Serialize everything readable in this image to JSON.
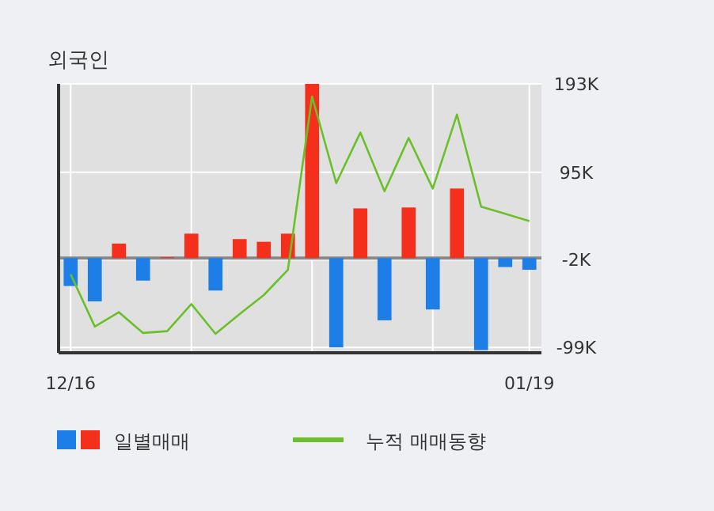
{
  "chart_data": {
    "type": "bar",
    "title": "외국인",
    "categories": [
      "12/16",
      null,
      null,
      null,
      null,
      null,
      null,
      null,
      null,
      null,
      null,
      null,
      null,
      null,
      null,
      null,
      null,
      null,
      null,
      "01/19"
    ],
    "ylim": [
      -105,
      193
    ],
    "yticks": [
      {
        "value": 193,
        "label": "193K"
      },
      {
        "value": 95,
        "label": "95K"
      },
      {
        "value": -2,
        "label": "-2K"
      },
      {
        "value": -99,
        "label": "-99K"
      }
    ],
    "grid": true,
    "legend": "bottom",
    "series": [
      {
        "name": "일별매매",
        "values": [
          -31,
          -48,
          16,
          -25,
          1,
          27,
          -36,
          21,
          18,
          27,
          193,
          -99,
          55,
          -69,
          56,
          -57,
          77,
          -102,
          -10,
          -13
        ],
        "colors": [
          "#1e7ee8",
          "#1e7ee8",
          "#f4301c",
          "#1e7ee8",
          "#f4301c",
          "#f4301c",
          "#1e7ee8",
          "#f4301c",
          "#f4301c",
          "#f4301c",
          "#f4301c",
          "#1e7ee8",
          "#f4301c",
          "#1e7ee8",
          "#f4301c",
          "#1e7ee8",
          "#f4301c",
          "#1e7ee8",
          "#1e7ee8",
          "#1e7ee8"
        ]
      },
      {
        "name": "누적 매매동향",
        "type": "line",
        "color": "#6ac02a",
        "values": [
          -18,
          -76,
          -60,
          -83,
          -81,
          -51,
          -84,
          -62,
          -41,
          -13,
          179,
          83,
          139,
          74,
          133,
          77,
          159,
          57,
          49,
          41
        ]
      }
    ]
  }
}
